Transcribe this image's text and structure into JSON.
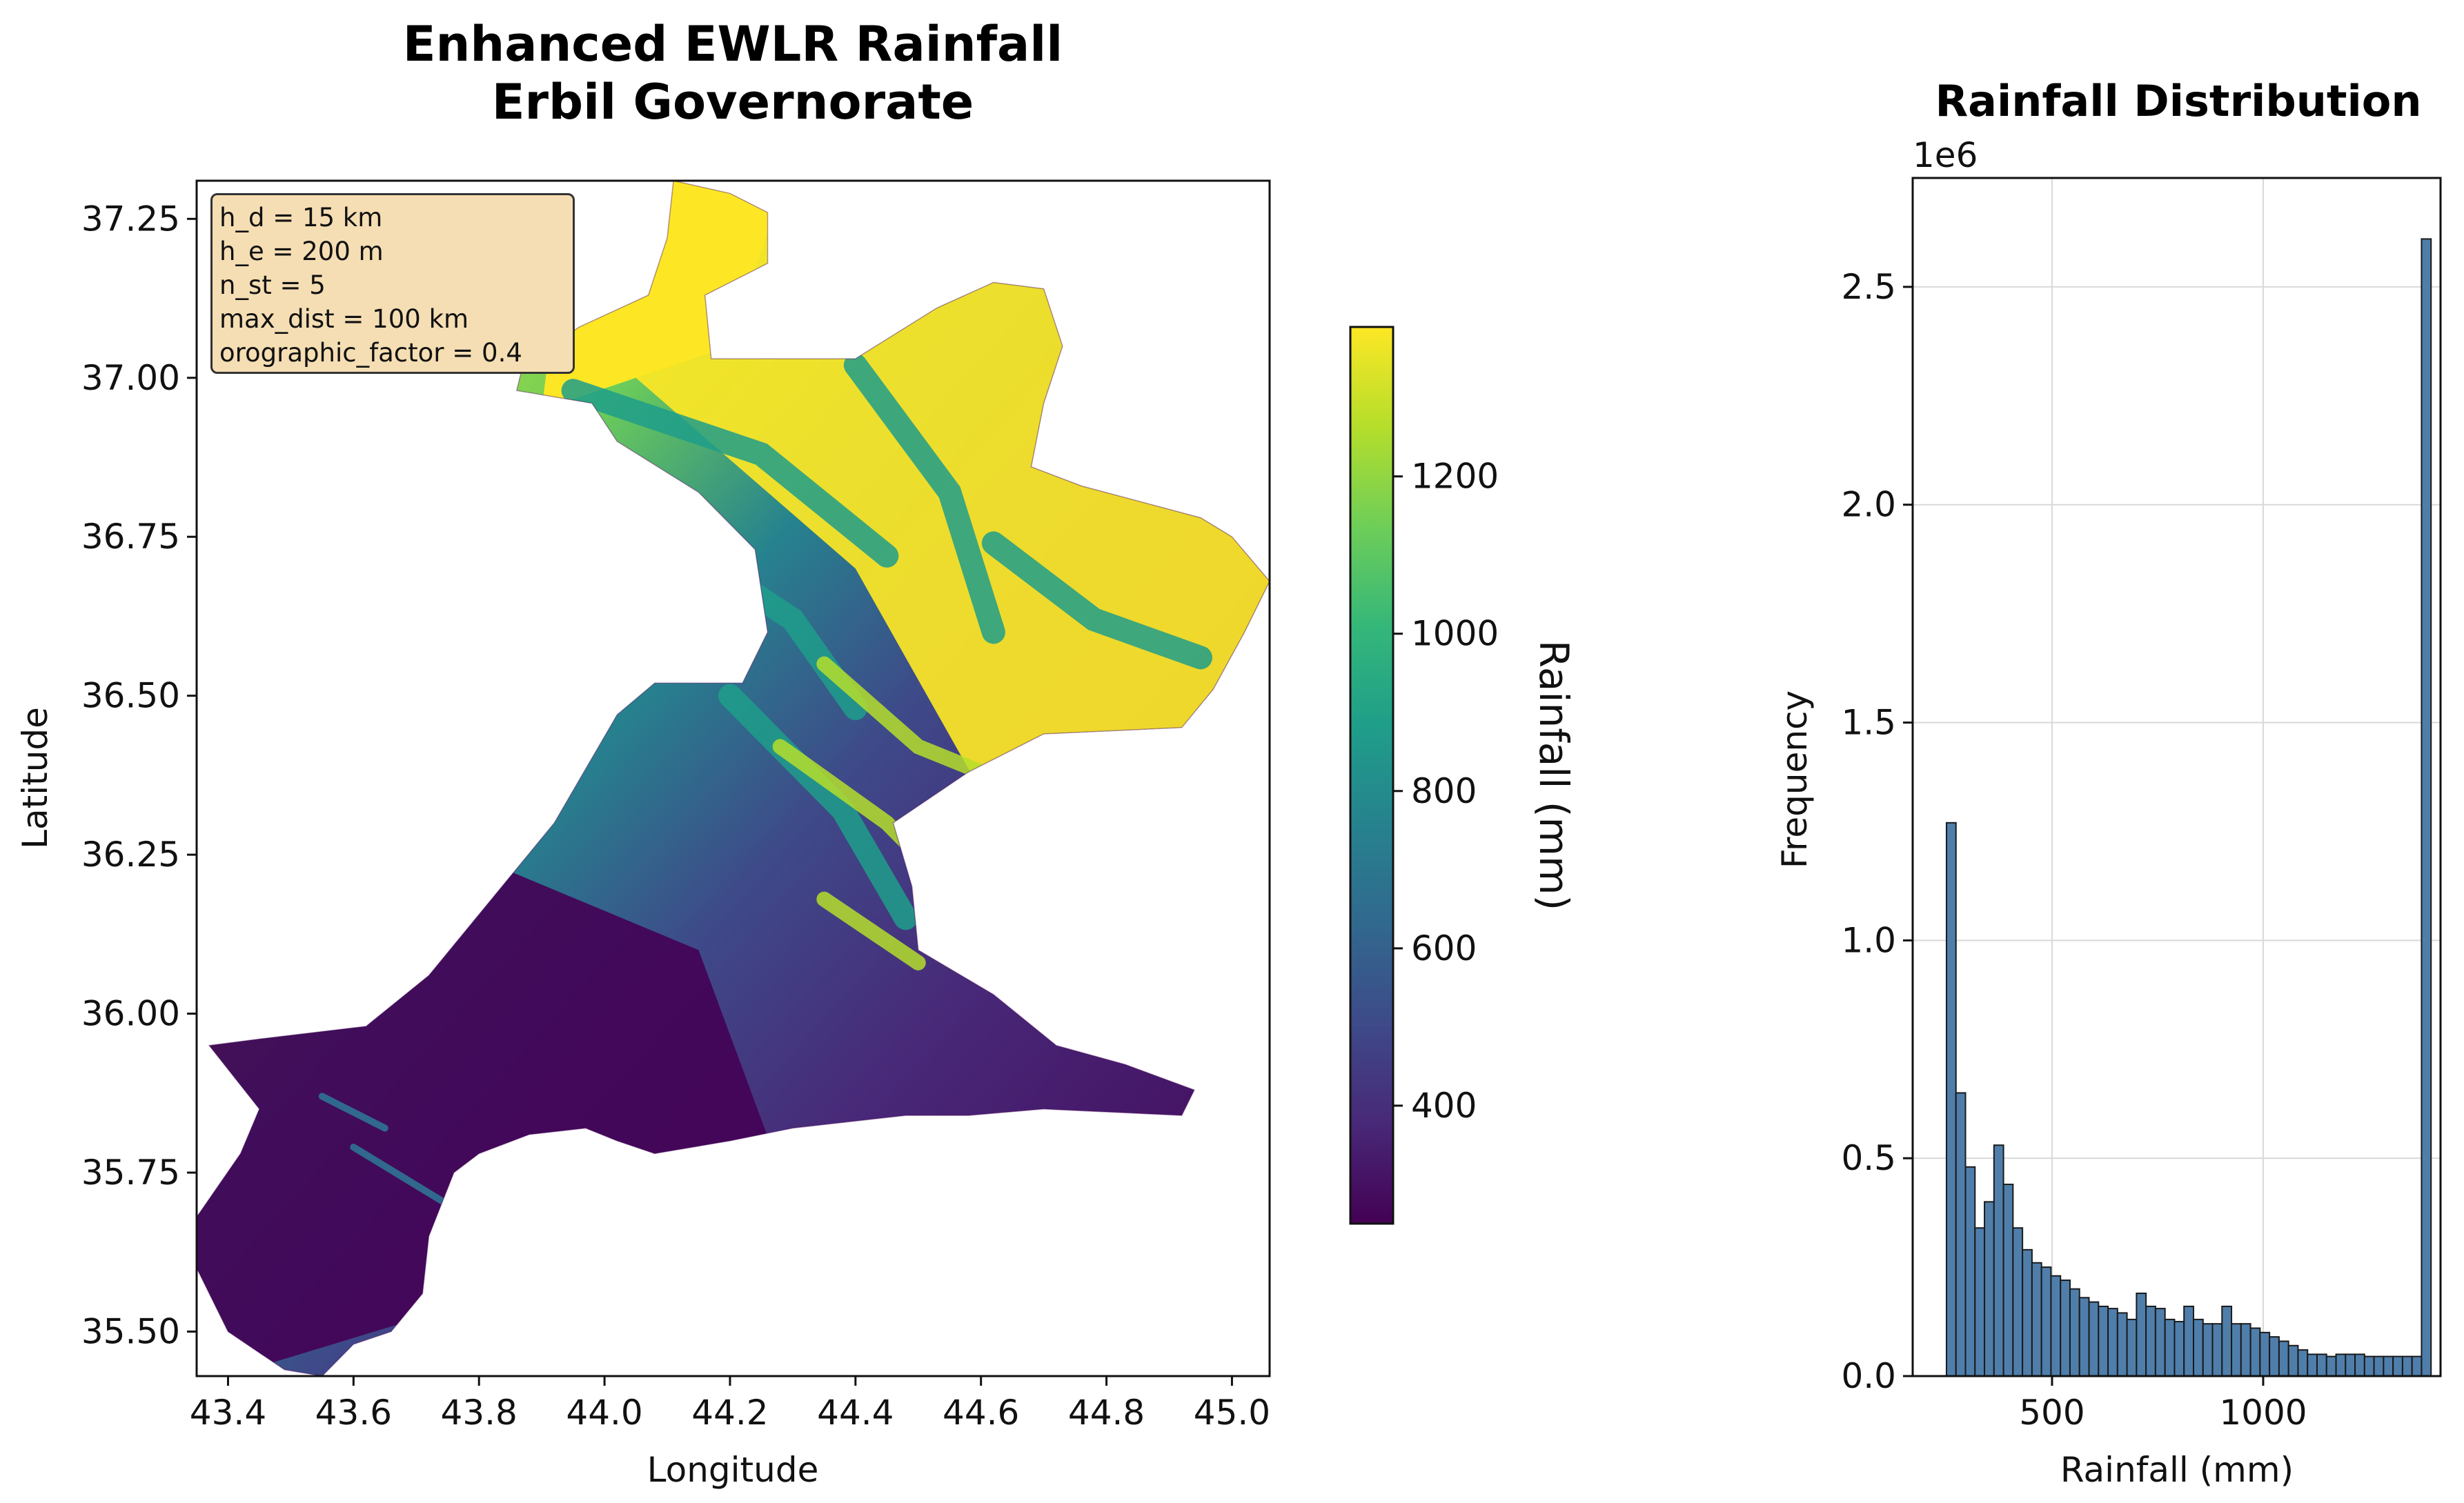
{
  "figure": {
    "map_title_line1": "Enhanced EWLR Rainfall",
    "map_title_line2": "Erbil Governorate",
    "params": [
      "h_d = 15 km",
      "h_e = 200 m",
      "n_st = 5",
      "max_dist = 100 km",
      "orographic_factor = 0.4"
    ]
  },
  "colors": {
    "viridis": [
      "#440154",
      "#482878",
      "#3e4a89",
      "#31688e",
      "#26828e",
      "#1f9e89",
      "#35b779",
      "#6ece58",
      "#b5de2b",
      "#fde725"
    ],
    "hist_fill": "#4f7eab",
    "hist_edge": "#1a1a1a",
    "param_box": "#f5deb3"
  },
  "chart_data": [
    {
      "type": "heatmap",
      "title": "Enhanced EWLR Rainfall\nErbil Governorate",
      "xlabel": "Longitude",
      "ylabel": "Latitude",
      "xlim": [
        43.35,
        45.06
      ],
      "ylim": [
        35.43,
        37.31
      ],
      "xticks": [
        43.4,
        43.6,
        43.8,
        44.0,
        44.2,
        44.4,
        44.6,
        44.8,
        45.0
      ],
      "xtick_labels": [
        "43.4",
        "43.6",
        "43.8",
        "44.0",
        "44.2",
        "44.4",
        "44.6",
        "44.8",
        "45.0"
      ],
      "yticks": [
        35.5,
        35.75,
        36.0,
        36.25,
        36.5,
        36.75,
        37.0,
        37.25
      ],
      "ytick_labels": [
        "35.50",
        "35.75",
        "36.00",
        "36.25",
        "36.50",
        "36.75",
        "37.00",
        "37.25"
      ],
      "colorbar": {
        "label": "Rainfall (mm)",
        "range": [
          250,
          1390
        ],
        "ticks": [
          400,
          600,
          800,
          1000,
          1200
        ],
        "tick_labels": [
          "400",
          "600",
          "800",
          "1000",
          "1200"
        ]
      },
      "boundary": [
        [
          43.35,
          35.68
        ],
        [
          43.42,
          35.78
        ],
        [
          43.45,
          35.85
        ],
        [
          43.37,
          35.95
        ],
        [
          43.45,
          35.96
        ],
        [
          43.62,
          35.98
        ],
        [
          43.72,
          36.06
        ],
        [
          43.82,
          36.18
        ],
        [
          43.92,
          36.3
        ],
        [
          44.02,
          36.47
        ],
        [
          44.08,
          36.52
        ],
        [
          44.22,
          36.52
        ],
        [
          44.26,
          36.6
        ],
        [
          44.24,
          36.73
        ],
        [
          44.15,
          36.82
        ],
        [
          44.02,
          36.9
        ],
        [
          43.98,
          36.96
        ],
        [
          43.86,
          36.98
        ],
        [
          43.87,
          37.02
        ],
        [
          43.96,
          37.08
        ],
        [
          44.07,
          37.13
        ],
        [
          44.1,
          37.22
        ],
        [
          44.11,
          37.31
        ],
        [
          44.2,
          37.29
        ],
        [
          44.26,
          37.26
        ],
        [
          44.26,
          37.18
        ],
        [
          44.16,
          37.13
        ],
        [
          44.17,
          37.03
        ],
        [
          44.4,
          37.03
        ],
        [
          44.53,
          37.11
        ],
        [
          44.62,
          37.15
        ],
        [
          44.7,
          37.14
        ],
        [
          44.73,
          37.05
        ],
        [
          44.7,
          36.96
        ],
        [
          44.68,
          36.86
        ],
        [
          44.76,
          36.83
        ],
        [
          44.95,
          36.78
        ],
        [
          45.0,
          36.75
        ],
        [
          45.06,
          36.68
        ],
        [
          45.02,
          36.6
        ],
        [
          44.97,
          36.51
        ],
        [
          44.92,
          36.45
        ],
        [
          44.7,
          36.44
        ],
        [
          44.58,
          36.38
        ],
        [
          44.46,
          36.3
        ],
        [
          44.49,
          36.2
        ],
        [
          44.5,
          36.1
        ],
        [
          44.62,
          36.03
        ],
        [
          44.72,
          35.95
        ],
        [
          44.83,
          35.92
        ],
        [
          44.94,
          35.88
        ],
        [
          44.92,
          35.84
        ],
        [
          44.7,
          35.85
        ],
        [
          44.58,
          35.84
        ],
        [
          44.48,
          35.84
        ],
        [
          44.3,
          35.82
        ],
        [
          44.2,
          35.8
        ],
        [
          44.08,
          35.78
        ],
        [
          44.02,
          35.8
        ],
        [
          43.97,
          35.82
        ],
        [
          43.88,
          35.81
        ],
        [
          43.8,
          35.78
        ],
        [
          43.76,
          35.75
        ],
        [
          43.72,
          35.65
        ],
        [
          43.71,
          35.56
        ],
        [
          43.66,
          35.5
        ],
        [
          43.6,
          35.48
        ],
        [
          43.55,
          35.43
        ],
        [
          43.49,
          35.44
        ],
        [
          43.4,
          35.5
        ],
        [
          43.35,
          35.6
        ]
      ]
    },
    {
      "type": "bar",
      "title": "Rainfall Distribution",
      "xlabel": "Rainfall (mm)",
      "ylabel": "Frequency",
      "offset_label": "1e6",
      "xlim": [
        170,
        1420
      ],
      "ylim": [
        0,
        2.75
      ],
      "xticks": [
        500,
        1000
      ],
      "xtick_labels": [
        "500",
        "1000"
      ],
      "yticks": [
        0,
        0.5,
        1.0,
        1.5,
        2.0,
        2.5
      ],
      "ytick_labels": [
        "0.0",
        "0.5",
        "1.0",
        "1.5",
        "2.0",
        "2.5"
      ],
      "bin_start": 250,
      "bin_width": 22.5,
      "values": [
        1.27,
        0.65,
        0.48,
        0.34,
        0.4,
        0.53,
        0.44,
        0.34,
        0.29,
        0.26,
        0.25,
        0.23,
        0.22,
        0.2,
        0.18,
        0.17,
        0.16,
        0.155,
        0.145,
        0.13,
        0.19,
        0.16,
        0.155,
        0.13,
        0.125,
        0.16,
        0.13,
        0.12,
        0.12,
        0.16,
        0.12,
        0.12,
        0.11,
        0.1,
        0.09,
        0.08,
        0.07,
        0.06,
        0.05,
        0.05,
        0.045,
        0.05,
        0.05,
        0.05,
        0.045,
        0.045,
        0.045,
        0.045,
        0.045,
        0.045,
        2.61
      ]
    }
  ]
}
